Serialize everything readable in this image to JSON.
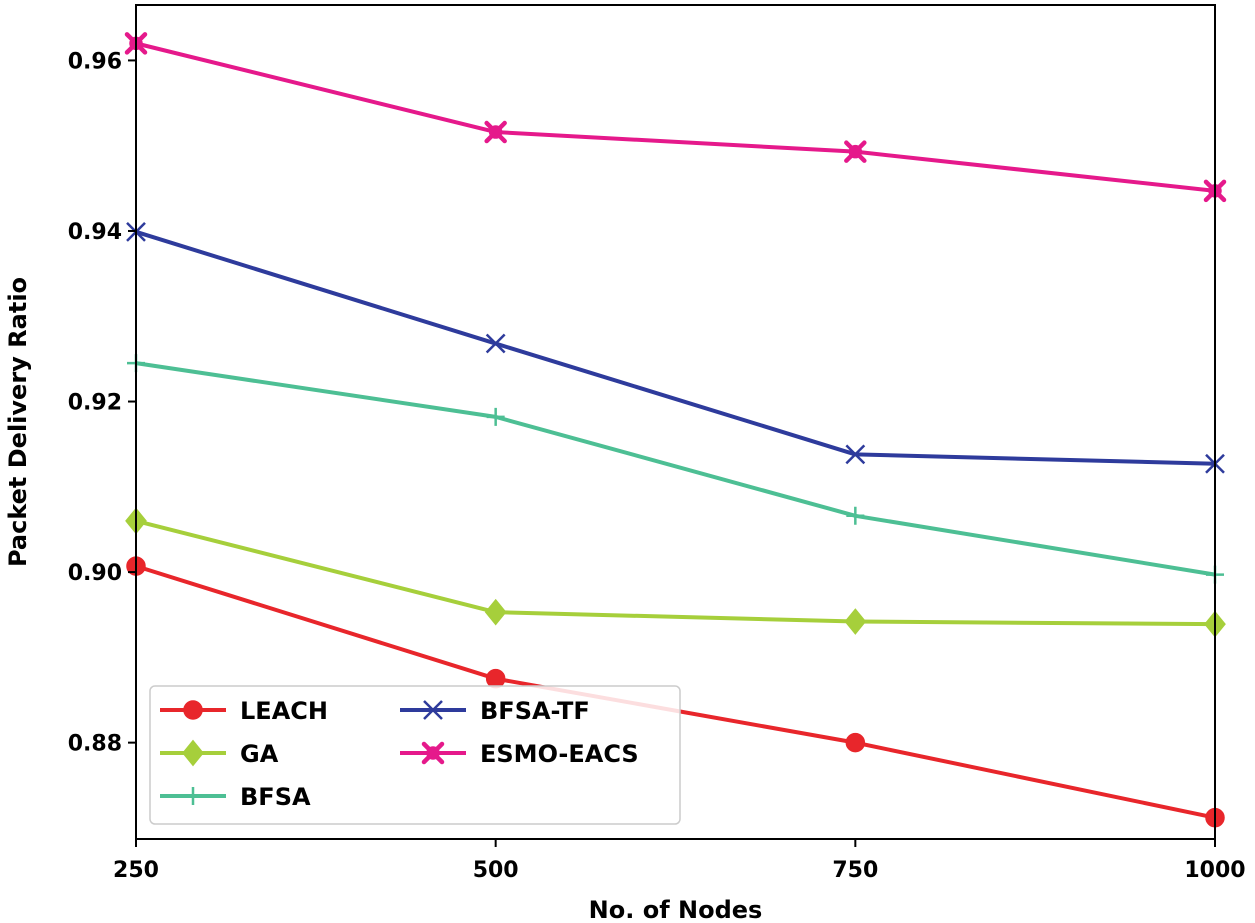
{
  "chart_data": {
    "type": "line",
    "title": "",
    "xlabel": "No. of Nodes",
    "ylabel": "Packet Delivery Ratio",
    "x": [
      250,
      500,
      750,
      1000
    ],
    "xticks": [
      "250",
      "500",
      "750",
      "1000"
    ],
    "yticks": [
      "0.88",
      "0.90",
      "0.92",
      "0.94",
      "0.96"
    ],
    "xlim": [
      250,
      1000
    ],
    "ylim": [
      0.8687,
      0.9665
    ],
    "grid": false,
    "legend_placement": "lower-left",
    "series": [
      {
        "name": "LEACH",
        "values": [
          0.9007,
          0.8875,
          0.88,
          0.8712
        ],
        "color": "#e8262b",
        "marker": "circle"
      },
      {
        "name": "GA",
        "values": [
          0.906,
          0.8953,
          0.8942,
          0.8939
        ],
        "color": "#a6cf3b",
        "marker": "diamond"
      },
      {
        "name": "BFSA",
        "values": [
          0.9245,
          0.9182,
          0.9066,
          0.8997
        ],
        "color": "#4dbf94",
        "marker": "plus"
      },
      {
        "name": "BFSA-TF",
        "values": [
          0.9399,
          0.9268,
          0.9138,
          0.9127
        ],
        "color": "#2e3b9c",
        "marker": "x"
      },
      {
        "name": "ESMO-EACS",
        "values": [
          0.962,
          0.9516,
          0.9493,
          0.9447
        ],
        "color": "#e5198b",
        "marker": "filled-x"
      }
    ]
  }
}
